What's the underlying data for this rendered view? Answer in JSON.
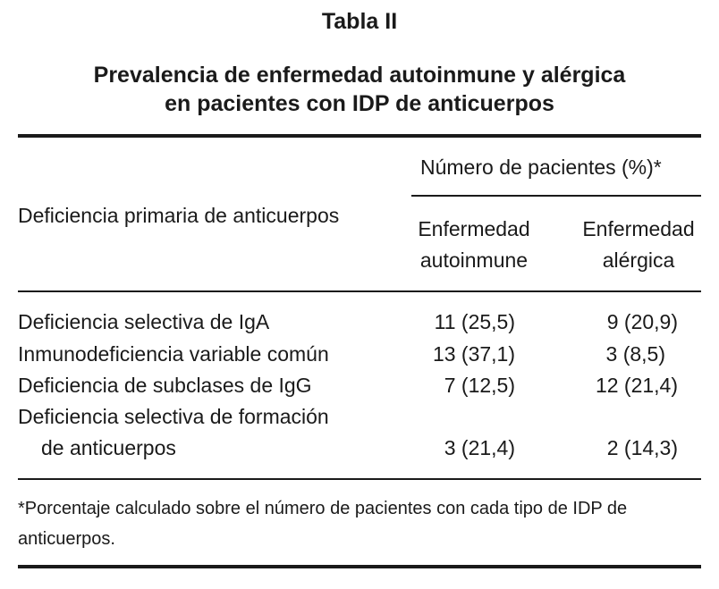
{
  "table_label": "Tabla II",
  "title_line1": "Prevalencia de enfermedad autoinmune y alérgica",
  "title_line2": "en pacientes con IDP de anticuerpos",
  "header": {
    "row_header": "Deficiencia primaria de anticuerpos",
    "group_header": "Número de pacientes (%)*",
    "col1_line1": "Enfermedad",
    "col1_line2": "autoinmune",
    "col2_line1": "Enfermedad",
    "col2_line2": "alérgica"
  },
  "rows": [
    {
      "label": "Deficiencia selectiva de IgA",
      "autoinmune": "11 (25,5)",
      "alergica": "9 (20,9)"
    },
    {
      "label": "Inmunodeficiencia variable común",
      "autoinmune": "13 (37,1)",
      "alergica": "3 (8,5)"
    },
    {
      "label": "Deficiencia de subclases de IgG",
      "autoinmune": "7 (12,5)",
      "alergica": "12 (21,4)"
    },
    {
      "label_line1": "Deficiencia selectiva de formación",
      "label_line2": "de anticuerpos",
      "autoinmune": "3 (21,4)",
      "alergica": "2 (14,3)"
    }
  ],
  "footnote_line1": "*Porcentaje calculado sobre el número de pacientes con cada tipo de IDP de",
  "footnote_line2": "anticuerpos."
}
